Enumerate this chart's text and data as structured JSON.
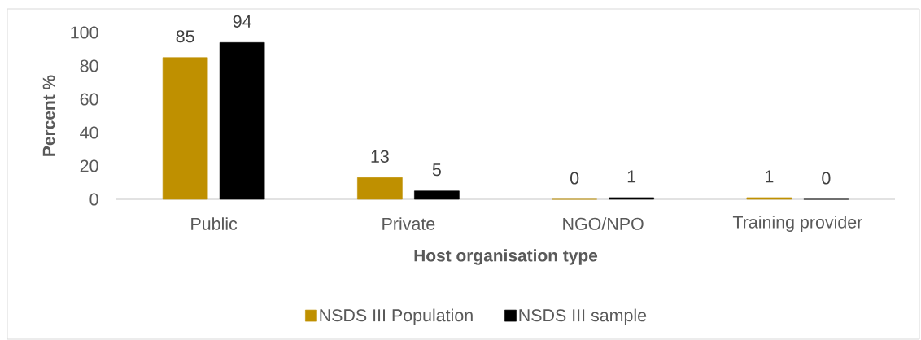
{
  "chart_data": {
    "type": "bar",
    "xlabel": "Host organisation type",
    "ylabel": "Percent %",
    "categories": [
      "Public",
      "Private",
      "NGO/NPO",
      "Training provider"
    ],
    "series": [
      {
        "name": "NSDS III Population",
        "color": "#bf9000",
        "values": [
          85,
          13,
          0,
          1
        ]
      },
      {
        "name": "NSDS III sample",
        "color": "#000000",
        "values": [
          94,
          5,
          1,
          0
        ]
      }
    ],
    "ylim": [
      0,
      100
    ],
    "yticks": [
      0,
      20,
      40,
      60,
      80,
      100
    ],
    "data_labels": true,
    "legend": "bottom"
  }
}
